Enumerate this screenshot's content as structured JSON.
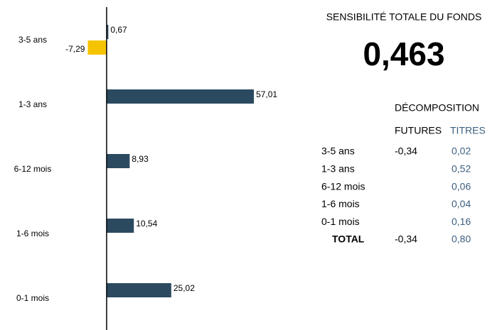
{
  "chart_data": {
    "type": "barh",
    "categories": [
      "3-5 ans",
      "1-3 ans",
      "6-12 mois",
      "1-6 mois",
      "0-1 mois"
    ],
    "series": [
      {
        "color": "#2b4a60",
        "values": [
          0.67,
          57.01,
          8.93,
          10.54,
          25.02
        ],
        "value_labels": [
          "0,67",
          "57,01",
          "8,93",
          "10,54",
          "25,02"
        ]
      },
      {
        "color": "#f5c400",
        "values": [
          -7.29,
          null,
          null,
          null,
          null
        ],
        "value_labels": [
          "-7,29",
          null,
          null,
          null,
          null
        ]
      }
    ],
    "xlim": [
      -16.5,
      68
    ]
  },
  "panel": {
    "title": "SENSIBILITÉ TOTALE DU FONDS",
    "total": "0,463",
    "table": {
      "title": "DÉCOMPOSITION",
      "columns": [
        "FUTURES",
        "TITRES"
      ],
      "rows": [
        {
          "label": "3-5 ans",
          "futures": "-0,34",
          "titres": "0,02"
        },
        {
          "label": "1-3 ans",
          "titres": "0,52"
        },
        {
          "label": "6-12 mois",
          "titres": "0,06"
        },
        {
          "label": "1-6 mois",
          "titres": "0,04"
        },
        {
          "label": "0-1 mois",
          "titres": "0,16"
        }
      ],
      "total": {
        "label": "TOTAL",
        "futures": "-0,34",
        "titres": "0,80"
      }
    }
  }
}
